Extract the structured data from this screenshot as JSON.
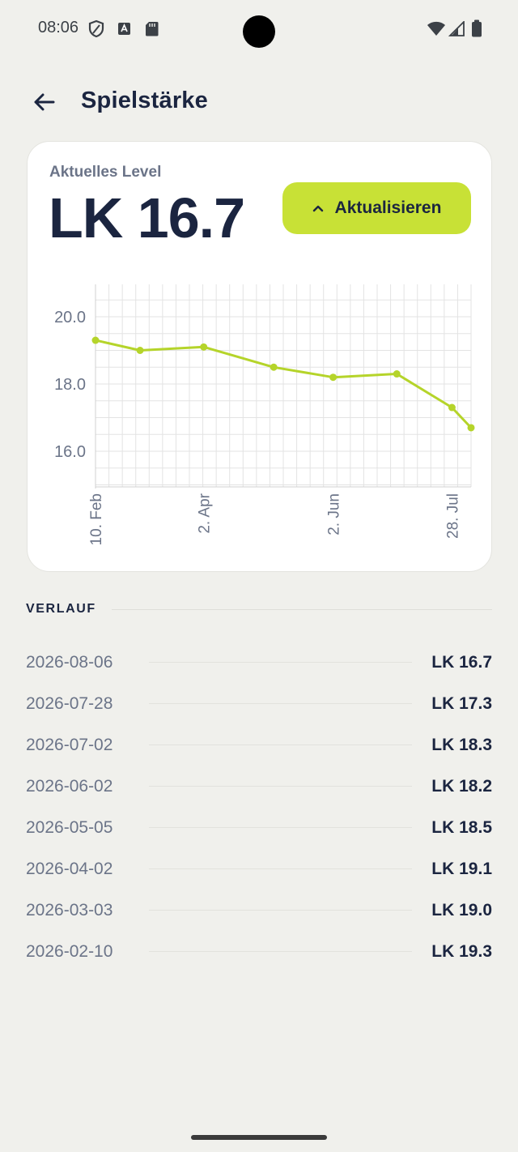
{
  "status_bar": {
    "time": "08:06"
  },
  "header": {
    "title": "Spielstärke"
  },
  "current": {
    "label": "Aktuelles Level",
    "value": "LK 16.7",
    "update_button_label": "Aktualisieren"
  },
  "chart_data": {
    "type": "line",
    "x": [
      "2026-02-10",
      "2026-03-03",
      "2026-04-02",
      "2026-05-05",
      "2026-06-02",
      "2026-07-02",
      "2026-07-28",
      "2026-08-06"
    ],
    "values": [
      19.3,
      19.0,
      19.1,
      18.5,
      18.2,
      18.3,
      17.3,
      16.7
    ],
    "x_tick_labels": [
      "10. Feb",
      "2. Apr",
      "2. Jun",
      "28. Jul"
    ],
    "y_tick_labels": [
      "20.0",
      "18.0",
      "16.0"
    ],
    "y_ticks": [
      20,
      18,
      16
    ],
    "ylim": [
      15,
      21
    ],
    "grid": true,
    "line_color": "#b5d42a"
  },
  "history": {
    "heading": "VERLAUF",
    "entries": [
      {
        "date": "2026-08-06",
        "value": "LK 16.7"
      },
      {
        "date": "2026-07-28",
        "value": "LK 17.3"
      },
      {
        "date": "2026-07-02",
        "value": "LK 18.3"
      },
      {
        "date": "2026-06-02",
        "value": "LK 18.2"
      },
      {
        "date": "2026-05-05",
        "value": "LK 18.5"
      },
      {
        "date": "2026-04-02",
        "value": "LK 19.1"
      },
      {
        "date": "2026-03-03",
        "value": "LK 19.0"
      },
      {
        "date": "2026-02-10",
        "value": "LK 19.3"
      }
    ]
  },
  "colors": {
    "background": "#f0f0ec",
    "accent": "#c8e136",
    "text_dark": "#1b2540",
    "text_muted": "#6b7488"
  }
}
